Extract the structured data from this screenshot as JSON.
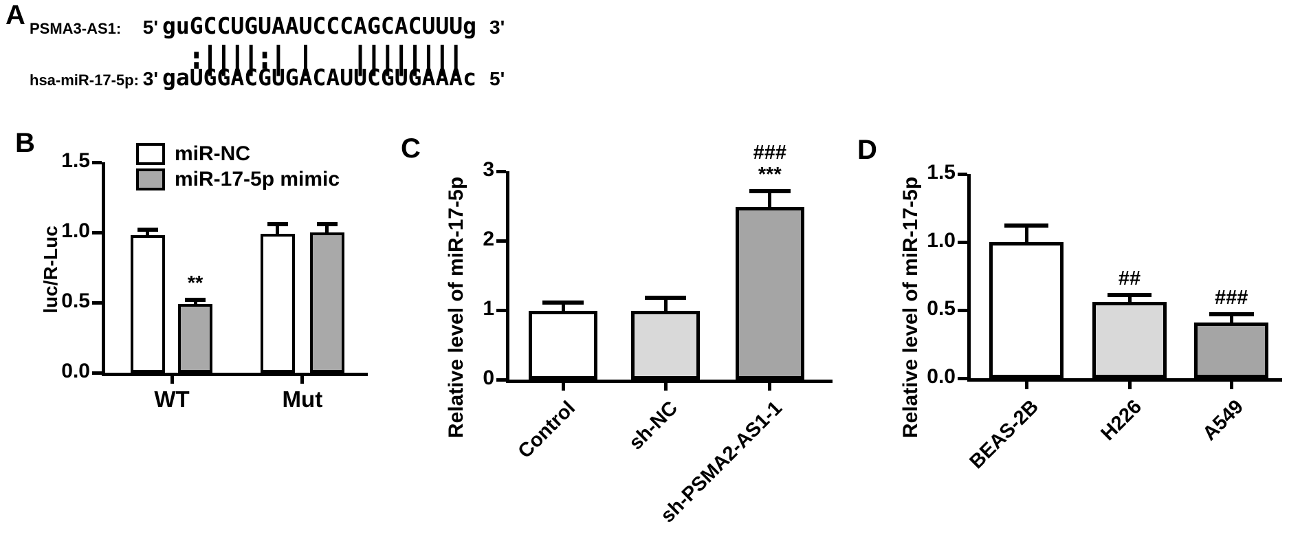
{
  "figure": {
    "background": "#ffffff",
    "panel_labels": {
      "a": "A",
      "b": "B",
      "c": "C",
      "d": "D"
    }
  },
  "panel_a": {
    "line1": {
      "name": "PSMA3-AS1:",
      "end_left": "5'",
      "seq": "guGCCUGUAAUCCCAGCACUUUg",
      "end_right": "3'"
    },
    "alignment": "  :||||:| |   ||||||||",
    "line2": {
      "name": "hsa-miR-17-5p:",
      "end_left": "3'",
      "seq": "gaUGGACGUGACAUUCGUGAAAc",
      "end_right": "5'"
    }
  },
  "colors": {
    "bar_white": "#ffffff",
    "bar_gray_medium": "#a9a9a9",
    "bar_gray_light": "#d9d9d9",
    "bar_gray_dark": "#a5a5a5",
    "axis_black": "#000000"
  },
  "chart_data": [
    {
      "type": "bar",
      "panel": "B",
      "ylabel": "luc/R-Luc",
      "xlabel": "",
      "ylim": [
        0,
        1.5
      ],
      "yticks": [
        0,
        0.5,
        1.0,
        1.5
      ],
      "ytick_labels": [
        "0.0",
        "0.5",
        "1.0",
        "1.5"
      ],
      "groups": [
        "WT",
        "Mut"
      ],
      "series": [
        {
          "name": "miR-NC",
          "fill": "#ffffff",
          "values": [
            0.98,
            0.99
          ],
          "errors": [
            0.04,
            0.07
          ],
          "sig": [
            "",
            ""
          ]
        },
        {
          "name": "miR-17-5p mimic",
          "fill": "#a9a9a9",
          "values": [
            0.49,
            1.0
          ],
          "errors": [
            0.03,
            0.06
          ],
          "sig": [
            "**",
            ""
          ]
        }
      ],
      "legend": true,
      "legend_position": "top-left-inside",
      "grid": false
    },
    {
      "type": "bar",
      "panel": "C",
      "ylabel": "Relative level of miR-17-5p",
      "xlabel": "",
      "ylim": [
        0,
        3
      ],
      "yticks": [
        0,
        1,
        2,
        3
      ],
      "ytick_labels": [
        "0",
        "1",
        "2",
        "3"
      ],
      "categories": [
        "Control",
        "sh-NC",
        "sh-PSMA2-AS1-1"
      ],
      "values": [
        0.99,
        0.99,
        2.49
      ],
      "errors": [
        0.12,
        0.19,
        0.22
      ],
      "sig": [
        "",
        "",
        "###\n***"
      ],
      "fills": [
        "#ffffff",
        "#d9d9d9",
        "#a5a5a5"
      ],
      "grid": false
    },
    {
      "type": "bar",
      "panel": "D",
      "ylabel": "Relative level of miR-17-5p",
      "xlabel": "",
      "ylim": [
        0,
        1.5
      ],
      "yticks": [
        0,
        0.5,
        1.0,
        1.5
      ],
      "ytick_labels": [
        "0.0",
        "0.5",
        "1.0",
        "1.5"
      ],
      "categories": [
        "BEAS-2B",
        "H226",
        "A549"
      ],
      "values": [
        1.0,
        0.56,
        0.41
      ],
      "errors": [
        0.12,
        0.05,
        0.06
      ],
      "sig": [
        "",
        "##",
        "###"
      ],
      "fills": [
        "#ffffff",
        "#d9d9d9",
        "#a5a5a5"
      ],
      "grid": false
    }
  ]
}
